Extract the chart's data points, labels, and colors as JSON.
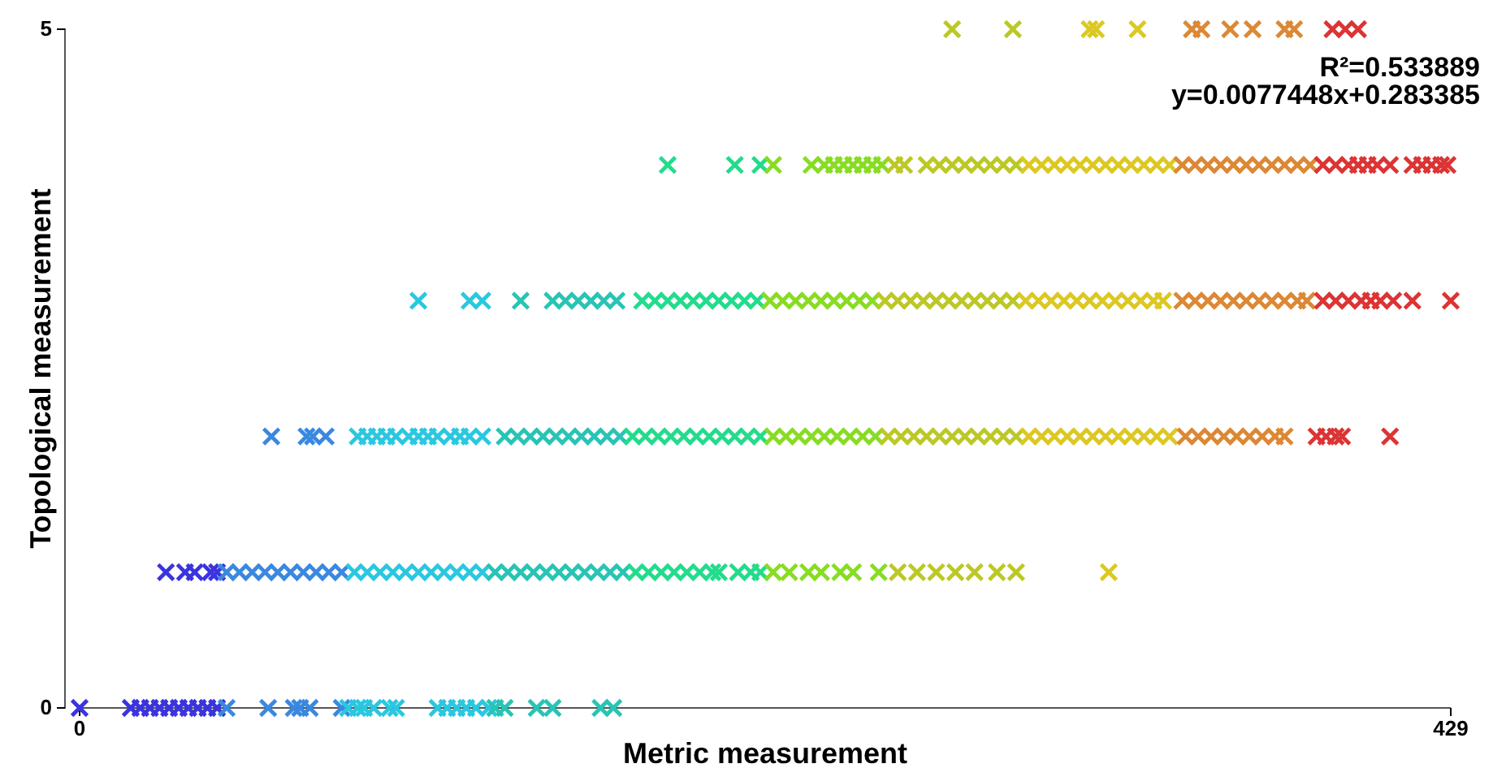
{
  "chart_data": {
    "type": "scatter",
    "xlabel": "Metric measurement",
    "ylabel": "Topological measurement",
    "xlim": [
      0,
      429
    ],
    "ylim": [
      0,
      5
    ],
    "xticks": [
      0,
      429
    ],
    "yticks": [
      0,
      5
    ],
    "marker": "cross",
    "grid": false,
    "annotations": [
      "R²=0.533889",
      "y=0.0077448x+0.283385"
    ],
    "series": [
      {
        "color": "#3a34e0",
        "x": [
          0,
          16,
          19,
          22,
          25,
          28,
          31,
          34,
          37,
          40,
          43,
          27,
          33,
          36,
          41,
          43
        ],
        "values": [
          0,
          0,
          0,
          0,
          0,
          0,
          0,
          0,
          0,
          0,
          0,
          1,
          1,
          1,
          1,
          1
        ]
      },
      {
        "color": "#3a88e0",
        "x": [
          46,
          59,
          67,
          69,
          72,
          82,
          46,
          50,
          54,
          58,
          62,
          66,
          70,
          74,
          78,
          82,
          60,
          71,
          73,
          77
        ],
        "values": [
          0,
          0,
          0,
          0,
          0,
          0,
          1,
          1,
          1,
          1,
          1,
          1,
          1,
          1,
          1,
          1,
          2,
          2,
          2,
          2
        ]
      },
      {
        "color": "#2ac8e0",
        "x": [
          84,
          87,
          89,
          92,
          97,
          99,
          112,
          115,
          118,
          121,
          124,
          128,
          86,
          90,
          94,
          98,
          102,
          106,
          110,
          114,
          118,
          122,
          126,
          87,
          90,
          93,
          96,
          99,
          103,
          106,
          109,
          112,
          116,
          119,
          122,
          126,
          106,
          122,
          126
        ],
        "values": [
          0,
          0,
          0,
          0,
          0,
          0,
          0,
          0,
          0,
          0,
          0,
          0,
          1,
          1,
          1,
          1,
          1,
          1,
          1,
          1,
          1,
          1,
          1,
          2,
          2,
          2,
          2,
          2,
          2,
          2,
          2,
          2,
          2,
          2,
          2,
          2,
          3,
          3,
          3
        ]
      },
      {
        "color": "#28c4b4",
        "x": [
          130,
          133,
          143,
          148,
          163,
          167,
          130,
          134,
          138,
          142,
          146,
          150,
          154,
          158,
          162,
          166,
          170,
          133,
          137,
          141,
          145,
          149,
          153,
          157,
          161,
          165,
          169,
          138,
          148,
          152,
          156,
          160,
          164,
          168
        ],
        "values": [
          0,
          0,
          0,
          0,
          0,
          0,
          1,
          1,
          1,
          1,
          1,
          1,
          1,
          1,
          1,
          1,
          1,
          2,
          2,
          2,
          2,
          2,
          2,
          2,
          2,
          2,
          2,
          3,
          3,
          3,
          3,
          3,
          3,
          3
        ]
      },
      {
        "color": "#22dc8c",
        "x": [
          174,
          178,
          182,
          186,
          190,
          194,
          198,
          200,
          206,
          210,
          213,
          173,
          177,
          181,
          185,
          189,
          193,
          197,
          201,
          205,
          209,
          213,
          176,
          180,
          184,
          188,
          192,
          196,
          200,
          204,
          208,
          212,
          184,
          205,
          213
        ],
        "values": [
          1,
          1,
          1,
          1,
          1,
          1,
          1,
          1,
          1,
          1,
          1,
          2,
          2,
          2,
          2,
          2,
          2,
          2,
          2,
          2,
          2,
          2,
          3,
          3,
          3,
          3,
          3,
          3,
          3,
          3,
          3,
          3,
          4,
          4,
          4
        ]
      },
      {
        "color": "#88dc22",
        "x": [
          217,
          222,
          228,
          232,
          238,
          242,
          250,
          217,
          221,
          225,
          229,
          233,
          237,
          241,
          245,
          249,
          216,
          220,
          224,
          228,
          232,
          236,
          240,
          244,
          248,
          217,
          229,
          233,
          236,
          239,
          242,
          245,
          248,
          251
        ],
        "values": [
          1,
          1,
          1,
          1,
          1,
          1,
          1,
          2,
          2,
          2,
          2,
          2,
          2,
          2,
          2,
          2,
          3,
          3,
          3,
          3,
          3,
          3,
          3,
          3,
          3,
          4,
          4,
          4,
          4,
          4,
          4,
          4,
          4,
          4
        ]
      },
      {
        "color": "#bcc825",
        "x": [
          256,
          262,
          268,
          274,
          280,
          287,
          293,
          253,
          257,
          261,
          265,
          269,
          273,
          277,
          281,
          285,
          289,
          293,
          252,
          256,
          260,
          264,
          268,
          272,
          276,
          280,
          284,
          288,
          292,
          255,
          258,
          265,
          269,
          273,
          277,
          281,
          285,
          289,
          293,
          273,
          292
        ],
        "values": [
          1,
          1,
          1,
          1,
          1,
          1,
          1,
          2,
          2,
          2,
          2,
          2,
          2,
          2,
          2,
          2,
          2,
          2,
          3,
          3,
          3,
          3,
          3,
          3,
          3,
          3,
          3,
          3,
          3,
          4,
          4,
          4,
          4,
          4,
          4,
          4,
          4,
          4,
          4,
          5,
          5
        ]
      },
      {
        "color": "#dcc822",
        "x": [
          322,
          297,
          301,
          305,
          309,
          313,
          317,
          321,
          325,
          329,
          333,
          337,
          341,
          296,
          300,
          304,
          308,
          312,
          316,
          320,
          324,
          328,
          332,
          336,
          339,
          297,
          301,
          305,
          309,
          313,
          317,
          321,
          325,
          329,
          333,
          337,
          341,
          316,
          318,
          331
        ],
        "values": [
          1,
          2,
          2,
          2,
          2,
          2,
          2,
          2,
          2,
          2,
          2,
          2,
          2,
          3,
          3,
          3,
          3,
          3,
          3,
          3,
          3,
          3,
          3,
          3,
          3,
          4,
          4,
          4,
          4,
          4,
          4,
          4,
          4,
          4,
          4,
          4,
          4,
          5,
          5,
          5
        ]
      },
      {
        "color": "#dc8834",
        "x": [
          346,
          350,
          354,
          358,
          362,
          366,
          370,
          374,
          377,
          345,
          349,
          353,
          357,
          361,
          365,
          369,
          373,
          377,
          381,
          384,
          345,
          349,
          353,
          357,
          361,
          365,
          369,
          373,
          377,
          381,
          385,
          348,
          351,
          360,
          367,
          377,
          380
        ],
        "values": [
          2,
          2,
          2,
          2,
          2,
          2,
          2,
          2,
          2,
          3,
          3,
          3,
          3,
          3,
          3,
          3,
          3,
          3,
          3,
          3,
          4,
          4,
          4,
          4,
          4,
          4,
          4,
          4,
          4,
          4,
          4,
          5,
          5,
          5,
          5,
          5,
          5
        ]
      },
      {
        "color": "#dc3434",
        "x": [
          387,
          390,
          393,
          395,
          410,
          389,
          393,
          397,
          401,
          404,
          407,
          411,
          417,
          429,
          389,
          393,
          397,
          400,
          403,
          406,
          410,
          417,
          420,
          423,
          426,
          428,
          392,
          396,
          400
        ],
        "values": [
          2,
          2,
          2,
          2,
          2,
          3,
          3,
          3,
          3,
          3,
          3,
          3,
          3,
          3,
          4,
          4,
          4,
          4,
          4,
          4,
          4,
          4,
          4,
          4,
          4,
          4,
          5,
          5,
          5
        ]
      }
    ]
  }
}
